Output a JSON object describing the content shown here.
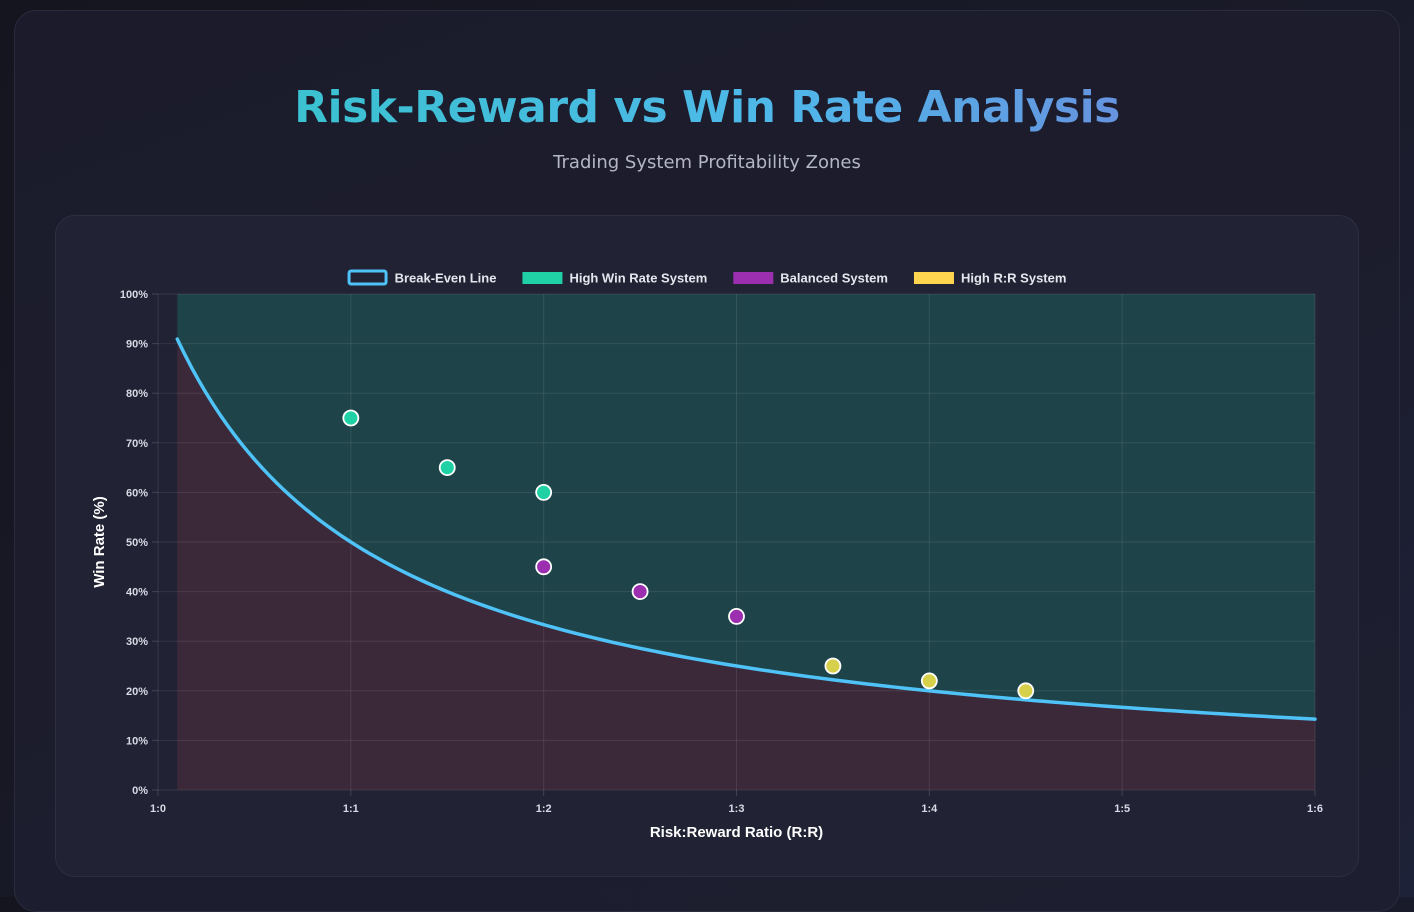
{
  "header": {
    "title": "Risk-Reward vs Win Rate Analysis",
    "subtitle": "Trading System Profitability Zones"
  },
  "chart_data": {
    "type": "scatter",
    "title": "",
    "xlabel": "Risk:Reward Ratio (R:R)",
    "ylabel": "Win Rate (%)",
    "xlim": [
      0,
      6
    ],
    "ylim": [
      0,
      100
    ],
    "x_ticks": [
      "1:0",
      "1:1",
      "1:2",
      "1:3",
      "1:4",
      "1:5",
      "1:6"
    ],
    "y_ticks": [
      "0%",
      "10%",
      "20%",
      "30%",
      "40%",
      "50%",
      "60%",
      "70%",
      "80%",
      "90%",
      "100%"
    ],
    "grid": true,
    "legend_position": "top",
    "break_even": {
      "name": "Break-Even Line",
      "formula": "100 / (1 + x)",
      "x_range": [
        0.1,
        6
      ],
      "color": "#4fc3f7"
    },
    "zones": {
      "profitable_color": "#1d4a4f",
      "losing_color": "#3f2a3c"
    },
    "series": [
      {
        "name": "High Win Rate System",
        "color": "#1fd1a5",
        "points": [
          [
            1,
            75
          ],
          [
            1.5,
            65
          ],
          [
            2,
            60
          ]
        ]
      },
      {
        "name": "Balanced System",
        "color": "#9b2fb0",
        "points": [
          [
            2,
            45
          ],
          [
            2.5,
            40
          ],
          [
            3,
            35
          ]
        ]
      },
      {
        "name": "High R:R System",
        "color": "#d6d04a",
        "legend_color": "#ffd54f",
        "points": [
          [
            3.5,
            25
          ],
          [
            4,
            22
          ],
          [
            4.5,
            20
          ]
        ]
      }
    ]
  }
}
